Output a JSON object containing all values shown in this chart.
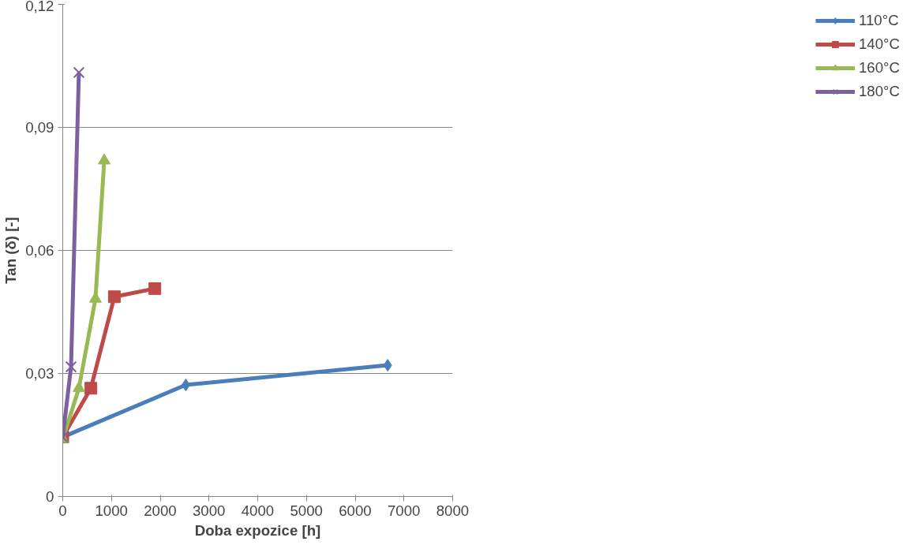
{
  "chart_data": {
    "type": "line",
    "xlabel": "Doba expozice [h]",
    "ylabel": "Tan (δ) [-]",
    "xlim": [
      0,
      8000
    ],
    "xticks": [
      0,
      1000,
      2000,
      3000,
      4000,
      5000,
      6000,
      7000,
      8000
    ],
    "ylim": [
      0,
      0.12
    ],
    "yticks": [
      {
        "value": 0,
        "label": "0"
      },
      {
        "value": 0.03,
        "label": "0,03"
      },
      {
        "value": 0.06,
        "label": "0,06"
      },
      {
        "value": 0.09,
        "label": "0,09"
      },
      {
        "value": 0.12,
        "label": "0,12"
      }
    ],
    "grid": "y",
    "legend": "right",
    "series": [
      {
        "name": "110°C",
        "color": "#4a7ebb",
        "marker": "diamond",
        "x": [
          0,
          2525,
          6667
        ],
        "values": [
          0.0145,
          0.0272,
          0.032
        ]
      },
      {
        "name": "140°C",
        "color": "#be4b48",
        "marker": "square",
        "x": [
          0,
          577,
          1059,
          1890
        ],
        "values": [
          0.0145,
          0.0264,
          0.0487,
          0.0507
        ]
      },
      {
        "name": "160°C",
        "color": "#98b954",
        "marker": "triangle",
        "x": [
          0,
          331,
          671,
          851
        ],
        "values": [
          0.014,
          0.0264,
          0.0482,
          0.0819
        ]
      },
      {
        "name": "180°C",
        "color": "#7d60a0",
        "marker": "cross",
        "x": [
          0,
          170,
          331
        ],
        "values": [
          0.0145,
          0.0316,
          0.1034
        ]
      }
    ]
  }
}
